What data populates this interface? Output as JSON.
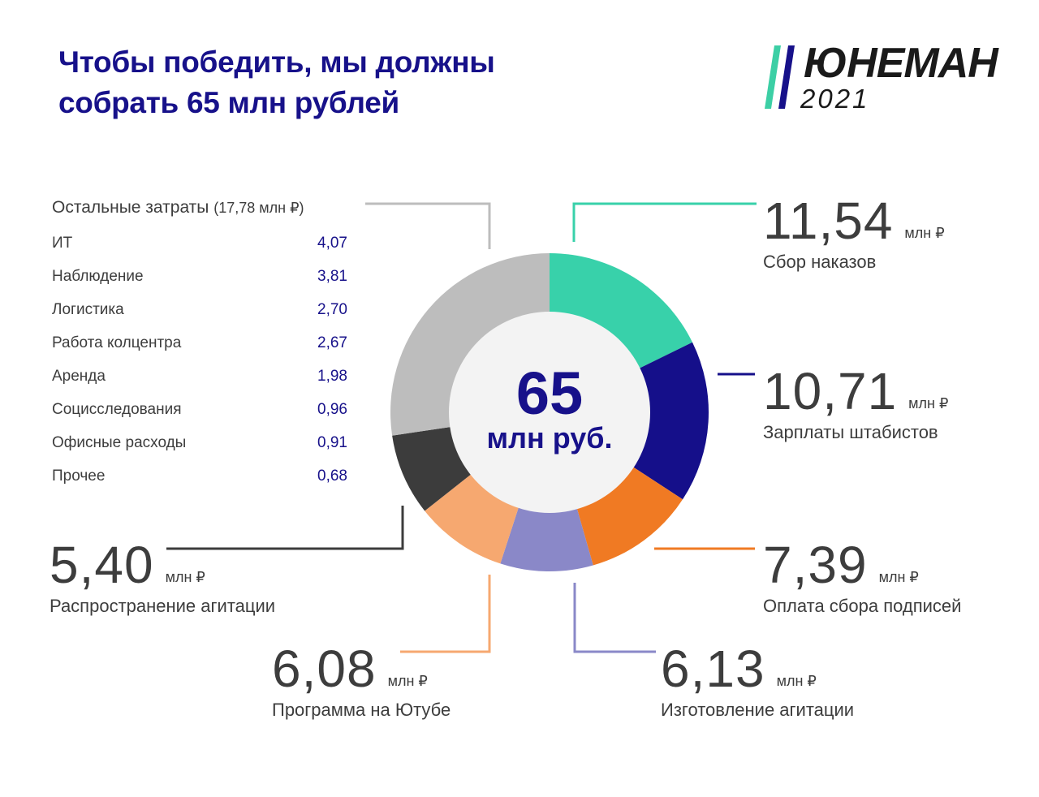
{
  "title_line1": "Чтобы победить, мы должны",
  "title_line2": "собрать 65 млн рублей",
  "logo": {
    "name": "ЮНЕМАН",
    "year": "2021",
    "colors": [
      "#3ccfa5",
      "#17118a"
    ]
  },
  "center": {
    "value": "65",
    "unit": "млн руб."
  },
  "unit_label": "млн ₽",
  "other": {
    "title": "Остальные затраты",
    "sub": "(17,78  млн ₽)",
    "items": [
      {
        "label": "ИТ",
        "value": "4,07"
      },
      {
        "label": "Наблюдение",
        "value": "3,81"
      },
      {
        "label": "Логистика",
        "value": "2,70"
      },
      {
        "label": "Работа колцентра",
        "value": "2,67"
      },
      {
        "label": "Аренда",
        "value": "1,98"
      },
      {
        "label": "Социсследования",
        "value": "0,96"
      },
      {
        "label": "Офисные расходы",
        "value": "0,91"
      },
      {
        "label": "Прочее",
        "value": "0,68"
      }
    ]
  },
  "chart_data": {
    "type": "pie",
    "variant": "donut",
    "total": 65,
    "slices": [
      {
        "label": "Сбор наказов",
        "value": 11.54,
        "display": "11,54",
        "color": "#38d1aa"
      },
      {
        "label": "Зарплаты штабистов",
        "value": 10.71,
        "display": "10,71",
        "color": "#150f8a"
      },
      {
        "label": "Оплата сбора подписей",
        "value": 7.39,
        "display": "7,39",
        "color": "#f07a23"
      },
      {
        "label": "Изготовление агитации",
        "value": 6.13,
        "display": "6,13",
        "color": "#8a88c8"
      },
      {
        "label": "Программа на Ютубе",
        "value": 6.08,
        "display": "6,08",
        "color": "#f6a870"
      },
      {
        "label": "Распространение агитации",
        "value": 5.4,
        "display": "5,40",
        "color": "#3c3c3c"
      },
      {
        "label": "Остальные затраты",
        "value": 17.78,
        "display": "17,78",
        "color": "#bdbdbd"
      }
    ],
    "start": "12 o'clock",
    "direction": "clockwise"
  }
}
